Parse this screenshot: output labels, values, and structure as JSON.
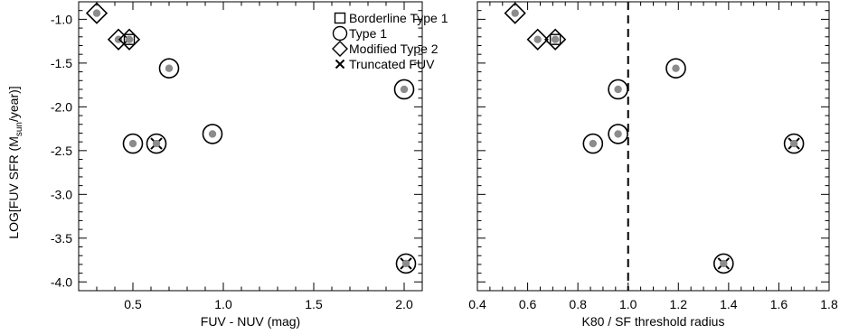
{
  "chart_data": [
    {
      "type": "scatter",
      "title": "",
      "xlabel": "FUV - NUV (mag)",
      "ylabel_main": "LOG[FUV SFR (M",
      "ylabel_sub": "sun",
      "ylabel_tail": "/year)]",
      "xlim": [
        0.2,
        2.1
      ],
      "ylim": [
        -4.1,
        -0.8
      ],
      "xticks": [
        0.5,
        1.0,
        1.5,
        2.0
      ],
      "xtick_labels": [
        "0.5",
        "1.0",
        "1.5",
        "2.0"
      ],
      "yticks": [
        -1.0,
        -1.5,
        -2.0,
        -2.5,
        -3.0,
        -3.5,
        -4.0
      ],
      "ytick_labels": [
        "-1.0",
        "-1.5",
        "-2.0",
        "-2.5",
        "-3.0",
        "-3.5",
        "-4.0"
      ],
      "legend": {
        "placement": "top-right",
        "entries": [
          {
            "marker": "square",
            "label": "Borderline Type 1"
          },
          {
            "marker": "circle",
            "label": "Type 1"
          },
          {
            "marker": "diamond",
            "label": "Modified Type 2"
          },
          {
            "marker": "x",
            "label": "Truncated FUV"
          }
        ]
      },
      "points": [
        {
          "x": 0.3,
          "y": -0.93,
          "markers": [
            "diamond"
          ]
        },
        {
          "x": 0.42,
          "y": -1.23,
          "markers": [
            "diamond"
          ]
        },
        {
          "x": 0.48,
          "y": -1.23,
          "markers": [
            "diamond",
            "square"
          ]
        },
        {
          "x": 0.7,
          "y": -1.56,
          "markers": [
            "circle"
          ]
        },
        {
          "x": 2.0,
          "y": -1.8,
          "markers": [
            "circle"
          ]
        },
        {
          "x": 0.94,
          "y": -2.31,
          "markers": [
            "circle"
          ]
        },
        {
          "x": 0.5,
          "y": -2.42,
          "markers": [
            "circle"
          ]
        },
        {
          "x": 0.63,
          "y": -2.42,
          "markers": [
            "circle",
            "x"
          ]
        },
        {
          "x": 2.01,
          "y": -3.79,
          "markers": [
            "circle",
            "x"
          ]
        }
      ]
    },
    {
      "type": "scatter",
      "title": "",
      "xlabel": "K80 / SF threshold radius",
      "xlim": [
        0.4,
        1.8
      ],
      "ylim": [
        -4.1,
        -0.8
      ],
      "xticks": [
        0.4,
        0.6,
        0.8,
        1.0,
        1.2,
        1.4,
        1.6,
        1.8
      ],
      "xtick_labels": [
        "0.4",
        "0.6",
        "0.8",
        "1.0",
        "1.2",
        "1.4",
        "1.6",
        "1.8"
      ],
      "yticks": [
        -1.0,
        -1.5,
        -2.0,
        -2.5,
        -3.0,
        -3.5,
        -4.0
      ],
      "reference_line": {
        "x": 1.0,
        "style": "dashed"
      },
      "points": [
        {
          "x": 0.55,
          "y": -0.93,
          "markers": [
            "diamond"
          ]
        },
        {
          "x": 0.64,
          "y": -1.23,
          "markers": [
            "diamond"
          ]
        },
        {
          "x": 0.71,
          "y": -1.23,
          "markers": [
            "diamond",
            "square"
          ]
        },
        {
          "x": 1.19,
          "y": -1.56,
          "markers": [
            "circle"
          ]
        },
        {
          "x": 0.96,
          "y": -1.8,
          "markers": [
            "circle"
          ]
        },
        {
          "x": 0.96,
          "y": -2.31,
          "markers": [
            "circle"
          ]
        },
        {
          "x": 0.86,
          "y": -2.42,
          "markers": [
            "circle"
          ]
        },
        {
          "x": 1.66,
          "y": -2.42,
          "markers": [
            "circle",
            "x"
          ]
        },
        {
          "x": 1.38,
          "y": -3.79,
          "markers": [
            "circle",
            "x"
          ]
        }
      ]
    }
  ]
}
